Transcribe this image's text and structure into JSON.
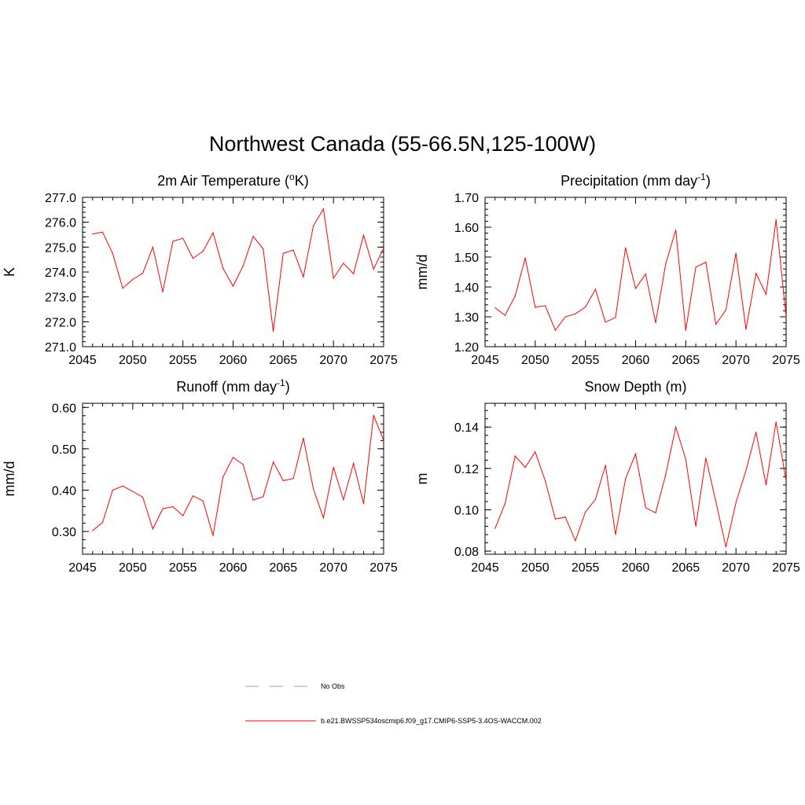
{
  "figure": {
    "title": "Northwest Canada (55-66.5N,125-100W)"
  },
  "chart_data": [
    {
      "type": "line",
      "title": "2m Air Temperature (°K)",
      "title_parts": {
        "pre": "2m Air Temperature (",
        "sup": "o",
        "post": "K)"
      },
      "xlabel": "",
      "ylabel": "K",
      "xlim": [
        2045,
        2075
      ],
      "ylim": [
        271.0,
        277.0
      ],
      "xticks": [
        2045,
        2050,
        2055,
        2060,
        2065,
        2070,
        2075
      ],
      "yticks": [
        271.0,
        272.0,
        273.0,
        274.0,
        275.0,
        276.0,
        277.0
      ],
      "ytick_labels": [
        "271.0",
        "272.0",
        "273.0",
        "274.0",
        "275.0",
        "276.0",
        "277.0"
      ],
      "ytick_minor": 0.2,
      "series": [
        {
          "name": "b.e21.BWSSP534oscmip6.f09_g17.CMIP6-SSP5-3.4OS-WACCM.002",
          "color": "#ff0000",
          "x": [
            2046,
            2047,
            2048,
            2049,
            2050,
            2051,
            2052,
            2053,
            2054,
            2055,
            2056,
            2057,
            2058,
            2059,
            2060,
            2061,
            2062,
            2063,
            2064,
            2065,
            2066,
            2067,
            2068,
            2069,
            2070,
            2071,
            2072,
            2073,
            2074,
            2075
          ],
          "values": [
            275.53,
            275.6,
            274.75,
            273.35,
            273.7,
            273.95,
            275.0,
            273.2,
            275.23,
            275.35,
            274.55,
            274.83,
            275.58,
            274.15,
            273.43,
            274.25,
            275.43,
            274.93,
            271.62,
            274.75,
            274.88,
            273.8,
            275.85,
            276.53,
            273.75,
            274.35,
            273.93,
            275.48,
            274.12,
            274.95
          ]
        }
      ]
    },
    {
      "type": "line",
      "title": "Precipitation (mm day-1)",
      "title_parts": {
        "pre": "Precipitation (mm day",
        "sup": "-1",
        "post": ")"
      },
      "xlabel": "",
      "ylabel": "mm/d",
      "xlim": [
        2045,
        2075
      ],
      "ylim": [
        1.2,
        1.7
      ],
      "xticks": [
        2045,
        2050,
        2055,
        2060,
        2065,
        2070,
        2075
      ],
      "yticks": [
        1.2,
        1.3,
        1.4,
        1.5,
        1.6,
        1.7
      ],
      "ytick_labels": [
        "1.20",
        "1.30",
        "1.40",
        "1.50",
        "1.60",
        "1.70"
      ],
      "ytick_minor": 0.02,
      "series": [
        {
          "name": "b.e21.BWSSP534oscmip6.f09_g17.CMIP6-SSP5-3.4OS-WACCM.002",
          "color": "#ff0000",
          "x": [
            2046,
            2047,
            2048,
            2049,
            2050,
            2051,
            2052,
            2053,
            2054,
            2055,
            2056,
            2057,
            2058,
            2059,
            2060,
            2061,
            2062,
            2063,
            2064,
            2065,
            2066,
            2067,
            2068,
            2069,
            2070,
            2071,
            2072,
            2073,
            2074,
            2075
          ],
          "values": [
            1.33,
            1.305,
            1.37,
            1.497,
            1.332,
            1.337,
            1.255,
            1.3,
            1.31,
            1.333,
            1.392,
            1.282,
            1.298,
            1.531,
            1.395,
            1.443,
            1.28,
            1.477,
            1.591,
            1.255,
            1.466,
            1.483,
            1.275,
            1.323,
            1.513,
            1.258,
            1.445,
            1.375,
            1.625,
            1.3
          ]
        }
      ]
    },
    {
      "type": "line",
      "title": "Runoff (mm day-1)",
      "title_parts": {
        "pre": "Runoff (mm day",
        "sup": "-1",
        "post": ")"
      },
      "xlabel": "",
      "ylabel": "mm/d",
      "xlim": [
        2045,
        2075
      ],
      "ylim": [
        0.245,
        0.61
      ],
      "xticks": [
        2045,
        2050,
        2055,
        2060,
        2065,
        2070,
        2075
      ],
      "yticks": [
        0.3,
        0.4,
        0.5,
        0.6
      ],
      "ytick_labels": [
        "0.30",
        "0.40",
        "0.50",
        "0.60"
      ],
      "ytick_minor": 0.02,
      "series": [
        {
          "name": "b.e21.BWSSP534oscmip6.f09_g17.CMIP6-SSP5-3.4OS-WACCM.002",
          "color": "#ff0000",
          "x": [
            2046,
            2047,
            2048,
            2049,
            2050,
            2051,
            2052,
            2053,
            2054,
            2055,
            2056,
            2057,
            2058,
            2059,
            2060,
            2061,
            2062,
            2063,
            2064,
            2065,
            2066,
            2067,
            2068,
            2069,
            2070,
            2071,
            2072,
            2073,
            2074,
            2075
          ],
          "values": [
            0.302,
            0.322,
            0.4,
            0.41,
            0.397,
            0.383,
            0.306,
            0.355,
            0.36,
            0.338,
            0.386,
            0.374,
            0.29,
            0.432,
            0.479,
            0.462,
            0.376,
            0.384,
            0.468,
            0.423,
            0.428,
            0.526,
            0.403,
            0.333,
            0.455,
            0.377,
            0.465,
            0.367,
            0.581,
            0.52
          ]
        }
      ]
    },
    {
      "type": "line",
      "title": "Snow Depth (m)",
      "title_parts": {
        "pre": "Snow Depth (m)",
        "sup": "",
        "post": ""
      },
      "xlabel": "",
      "ylabel": "m",
      "xlim": [
        2045,
        2075
      ],
      "ylim": [
        0.0785,
        0.1515
      ],
      "xticks": [
        2045,
        2050,
        2055,
        2060,
        2065,
        2070,
        2075
      ],
      "yticks": [
        0.08,
        0.1,
        0.12,
        0.14
      ],
      "ytick_labels": [
        "0.08",
        "0.10",
        "0.12",
        "0.14"
      ],
      "ytick_minor": 0.004,
      "series": [
        {
          "name": "b.e21.BWSSP534oscmip6.f09_g17.CMIP6-SSP5-3.4OS-WACCM.002",
          "color": "#ff0000",
          "x": [
            2046,
            2047,
            2048,
            2049,
            2050,
            2051,
            2052,
            2053,
            2054,
            2055,
            2056,
            2057,
            2058,
            2059,
            2060,
            2061,
            2062,
            2063,
            2064,
            2065,
            2066,
            2067,
            2068,
            2069,
            2070,
            2071,
            2072,
            2073,
            2074,
            2075
          ],
          "values": [
            0.091,
            0.103,
            0.126,
            0.1205,
            0.128,
            0.114,
            0.0955,
            0.0965,
            0.085,
            0.099,
            0.105,
            0.1215,
            0.088,
            0.115,
            0.127,
            0.101,
            0.0985,
            0.117,
            0.14,
            0.1245,
            0.092,
            0.125,
            0.104,
            0.082,
            0.1035,
            0.119,
            0.1375,
            0.112,
            0.1425,
            0.114
          ]
        }
      ]
    }
  ],
  "legend": {
    "items": [
      {
        "label": "No Obs",
        "style": "dashed",
        "color": "#9999dd"
      },
      {
        "label": "b.e21.BWSSP534oscmip6.f09_g17.CMIP6-SSP5-3.4OS-WACCM.002",
        "style": "solid",
        "color": "#ff0000"
      }
    ]
  }
}
